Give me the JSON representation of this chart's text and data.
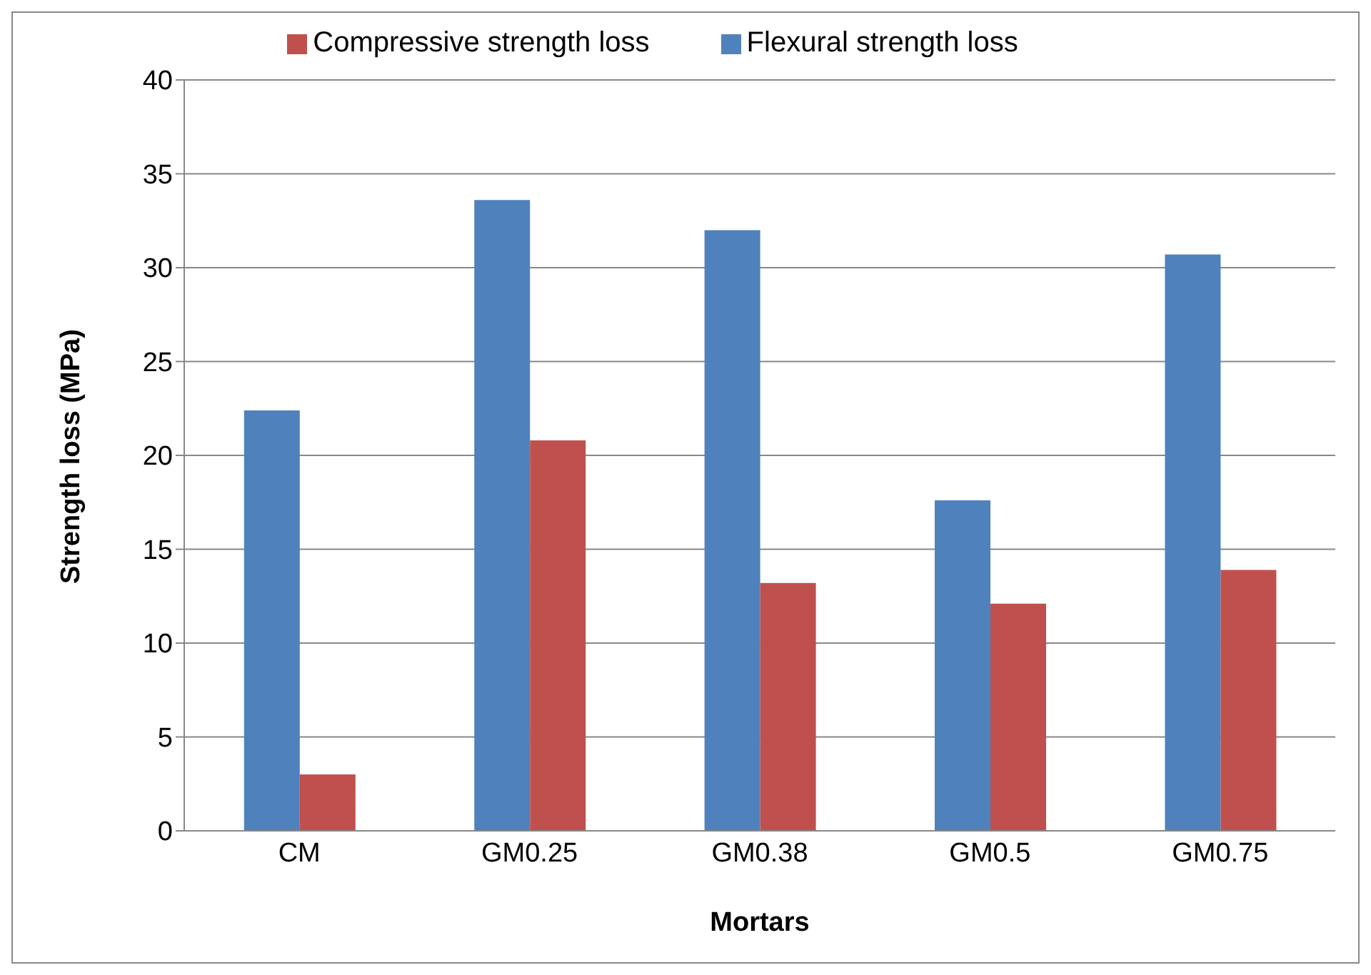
{
  "chart_data": {
    "type": "bar",
    "xlabel": "Mortars",
    "ylabel": "Strength loss (MPa)",
    "categories": [
      "CM",
      "GM0.25",
      "GM0.38",
      "GM0.5",
      "GM0.75"
    ],
    "series": [
      {
        "name": "Flexural strength loss",
        "color": "#4f81bd",
        "values": [
          22.4,
          33.6,
          32.0,
          17.6,
          30.7
        ]
      },
      {
        "name": "Compressive strength loss",
        "color": "#c0504d",
        "values": [
          3.0,
          20.8,
          13.2,
          12.1,
          13.9
        ]
      }
    ],
    "ylim": [
      0,
      40
    ],
    "yticks": [
      0,
      5,
      10,
      15,
      20,
      25,
      30,
      35,
      40
    ],
    "grid": "y",
    "legend": "top"
  }
}
